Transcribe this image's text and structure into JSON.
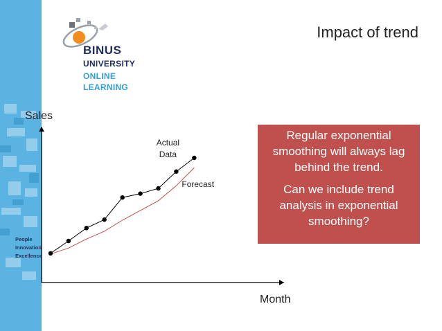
{
  "slide": {
    "title": "Impact of trend",
    "logo": {
      "line1": "BINUS",
      "line2": "UNIVERSITY",
      "line3": "ONLINE",
      "line4": "LEARNING"
    },
    "tagline": [
      "People",
      "Innovation",
      "Excellence"
    ],
    "callout": {
      "paragraph1": "Regular exponential smoothing will always lag behind the trend.",
      "paragraph2": "Can we include trend analysis in exponential smoothing?"
    },
    "colors": {
      "callout_bg": "#c0504d",
      "forecast_line": "#c0504d",
      "actual_line": "#000000",
      "sidebar_blue": "#2f9fd6"
    }
  },
  "chart_data": {
    "type": "line",
    "xlabel": "Month",
    "ylabel": "Sales",
    "grid": false,
    "x": [
      1,
      2,
      3,
      4,
      5,
      6,
      7,
      8,
      9
    ],
    "series": [
      {
        "name": "Actual Data",
        "marker": "circle",
        "values": [
          1.5,
          3.4,
          5.4,
          6.7,
          10.1,
          10.7,
          11.5,
          14.1,
          16.2
        ]
      },
      {
        "name": "Forecast",
        "marker": "none",
        "values": [
          1.4,
          2.3,
          3.7,
          4.9,
          6.6,
          8.1,
          9.6,
          11.9,
          14.7
        ]
      }
    ],
    "annotations": [
      {
        "text": "Actual Data",
        "series": "Actual Data"
      },
      {
        "text": "Forecast",
        "series": "Forecast"
      }
    ],
    "xlim": [
      0.5,
      14
    ],
    "ylim": [
      -3,
      21
    ]
  }
}
